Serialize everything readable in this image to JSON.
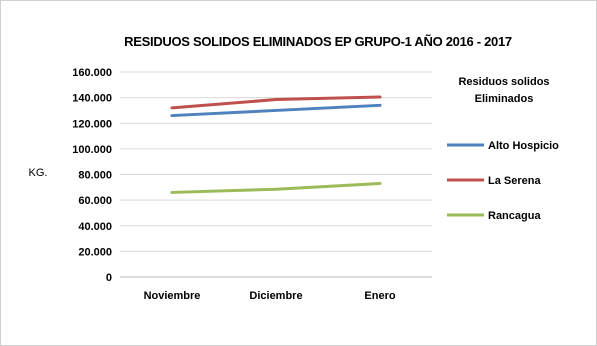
{
  "chart_data": {
    "type": "line",
    "title": "RESIDUOS  SOLIDOS ELIMINADOS EP GRUPO-1  AÑO 2016 - 2017",
    "xlabel": "",
    "ylabel": "KG.",
    "categories": [
      "Noviembre",
      "Diciembre",
      "Enero"
    ],
    "ylim": [
      0,
      160000
    ],
    "yticks": [
      0,
      20000,
      40000,
      60000,
      80000,
      100000,
      120000,
      140000,
      160000
    ],
    "ytick_labels": [
      "0",
      "20.000",
      "40.000",
      "60.000",
      "80.000",
      "100.000",
      "120.000",
      "140.000",
      "160.000"
    ],
    "grid": true,
    "legend": {
      "title_line1": "Residuos solidos",
      "title_line2": "Eliminados",
      "placement": "right"
    },
    "series": [
      {
        "name": "Alto Hospicio",
        "color": "#4f81bd",
        "values": [
          126000,
          130000,
          134000
        ]
      },
      {
        "name": "La Serena",
        "color": "#c0504d",
        "values": [
          132000,
          138500,
          140500
        ]
      },
      {
        "name": "Rancagua",
        "color": "#9bbb59",
        "values": [
          66000,
          68500,
          73000
        ]
      }
    ]
  }
}
